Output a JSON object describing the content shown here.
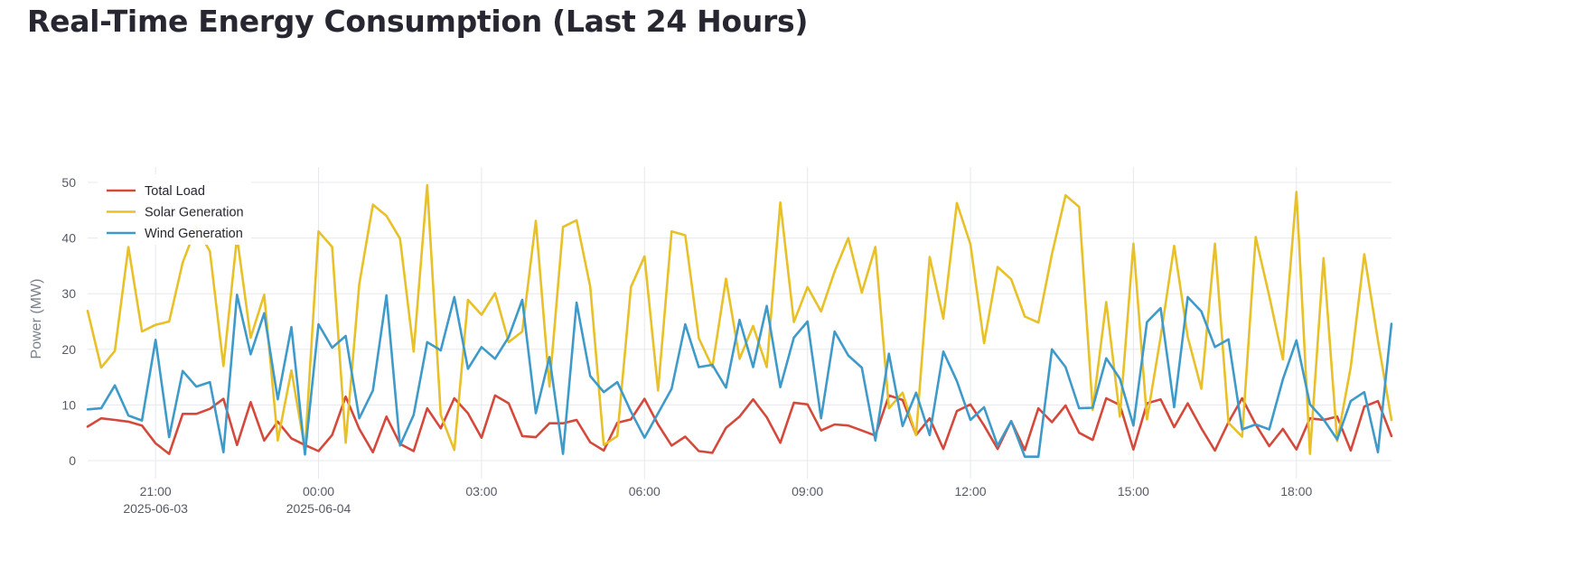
{
  "page": {
    "title": "Real-Time Energy Consumption (Last 24 Hours)"
  },
  "chart_data": {
    "type": "line",
    "ylabel": "Power (MW)",
    "xlabel": "",
    "ylim": [
      0,
      52
    ],
    "yticks": [
      0,
      10,
      20,
      30,
      40,
      50
    ],
    "x_start": "2025-06-03 19:45",
    "x_end": "2025-06-04 19:45",
    "x_ticks": [
      {
        "time": "21:00",
        "date": "2025-06-03"
      },
      {
        "time": "00:00",
        "date": "2025-06-04"
      },
      {
        "time": "03:00",
        "date": ""
      },
      {
        "time": "06:00",
        "date": ""
      },
      {
        "time": "09:00",
        "date": ""
      },
      {
        "time": "12:00",
        "date": ""
      },
      {
        "time": "15:00",
        "date": ""
      },
      {
        "time": "18:00",
        "date": ""
      }
    ],
    "grid": true,
    "legend_position": "top-left",
    "series": [
      {
        "name": "Total Load",
        "color": "#d4493b",
        "values": [
          6.1,
          7.6,
          7.3,
          7.0,
          6.3,
          3.1,
          1.2,
          8.4,
          8.4,
          9.3,
          11.1,
          2.8,
          10.5,
          3.6,
          7.0,
          4.0,
          2.8,
          1.7,
          4.6,
          11.5,
          5.7,
          1.5,
          7.9,
          3.0,
          1.7,
          9.4,
          5.8,
          11.2,
          8.5,
          4.1,
          11.7,
          10.3,
          4.4,
          4.2,
          6.7,
          6.7,
          7.3,
          3.3,
          1.8,
          6.8,
          7.4,
          11.1,
          6.5,
          2.7,
          4.3,
          1.7,
          1.4,
          5.9,
          7.9,
          11.0,
          7.8,
          3.2,
          10.4,
          10.1,
          5.4,
          6.5,
          6.3,
          5.4,
          4.5,
          11.7,
          10.9,
          4.6,
          7.6,
          2.1,
          8.9,
          10.1,
          6.3,
          2.1,
          7.1,
          1.9,
          9.4,
          6.9,
          9.9,
          5.0,
          3.7,
          11.2,
          10.0,
          2.0,
          10.3,
          11.0,
          6.0,
          10.3,
          5.8,
          1.8,
          6.9,
          11.2,
          6.5,
          2.6,
          5.7,
          2.0,
          7.6,
          7.3,
          7.9,
          1.8,
          9.7,
          10.7,
          4.4
        ]
      },
      {
        "name": "Solar Generation",
        "color": "#e8c027",
        "values": [
          26.9,
          16.7,
          19.7,
          38.4,
          23.2,
          24.4,
          25.0,
          35.6,
          42.0,
          37.6,
          17.0,
          40.2,
          22.1,
          29.8,
          3.6,
          16.2,
          2.0,
          41.2,
          38.4,
          3.2,
          31.7,
          46.0,
          44.0,
          39.9,
          19.6,
          49.5,
          8.2,
          1.9,
          28.9,
          26.2,
          30.1,
          21.3,
          23.2,
          43.1,
          13.3,
          42.0,
          43.2,
          31.3,
          2.8,
          4.4,
          31.2,
          36.7,
          12.6,
          41.2,
          40.5,
          22.0,
          16.8,
          32.7,
          18.3,
          24.2,
          16.8,
          46.4,
          24.9,
          31.2,
          26.8,
          34.0,
          40.0,
          30.2,
          38.4,
          9.4,
          12.2,
          4.6,
          36.6,
          25.5,
          46.3,
          38.9,
          21.1,
          34.8,
          32.6,
          25.9,
          24.8,
          37.1,
          47.7,
          45.6,
          9.1,
          28.5,
          7.9,
          39.0,
          7.4,
          22.2,
          38.6,
          22.2,
          12.9,
          39.0,
          6.8,
          4.3,
          40.2,
          29.6,
          18.2,
          48.3,
          1.2,
          36.4,
          3.5,
          16.8,
          37.1,
          21.6,
          7.3
        ]
      },
      {
        "name": "Wind Generation",
        "color": "#3e9ac9",
        "values": [
          9.2,
          9.4,
          13.5,
          8.1,
          7.2,
          21.7,
          4.2,
          16.1,
          13.3,
          14.1,
          1.5,
          29.8,
          19.1,
          26.5,
          11.0,
          24.0,
          1.1,
          24.5,
          20.3,
          22.4,
          7.6,
          12.6,
          29.7,
          2.7,
          8.2,
          21.3,
          19.8,
          29.4,
          16.5,
          20.4,
          18.3,
          22.2,
          28.9,
          8.5,
          18.6,
          1.2,
          28.4,
          15.2,
          12.3,
          14.1,
          8.8,
          4.1,
          8.5,
          12.9,
          24.5,
          16.8,
          17.2,
          13.1,
          25.3,
          16.8,
          27.8,
          13.2,
          22.1,
          25.0,
          7.6,
          23.2,
          18.9,
          16.7,
          3.6,
          19.2,
          6.2,
          12.2,
          4.6,
          19.6,
          14.3,
          7.3,
          9.6,
          2.7,
          7.1,
          0.7,
          0.7,
          20.0,
          16.8,
          9.4,
          9.5,
          18.4,
          14.7,
          6.3,
          24.9,
          27.4,
          9.6,
          29.4,
          26.8,
          20.4,
          21.8,
          5.6,
          6.5,
          5.6,
          14.6,
          21.6,
          10.1,
          7.4,
          3.8,
          10.7,
          12.3,
          1.5,
          24.6
        ]
      }
    ]
  }
}
